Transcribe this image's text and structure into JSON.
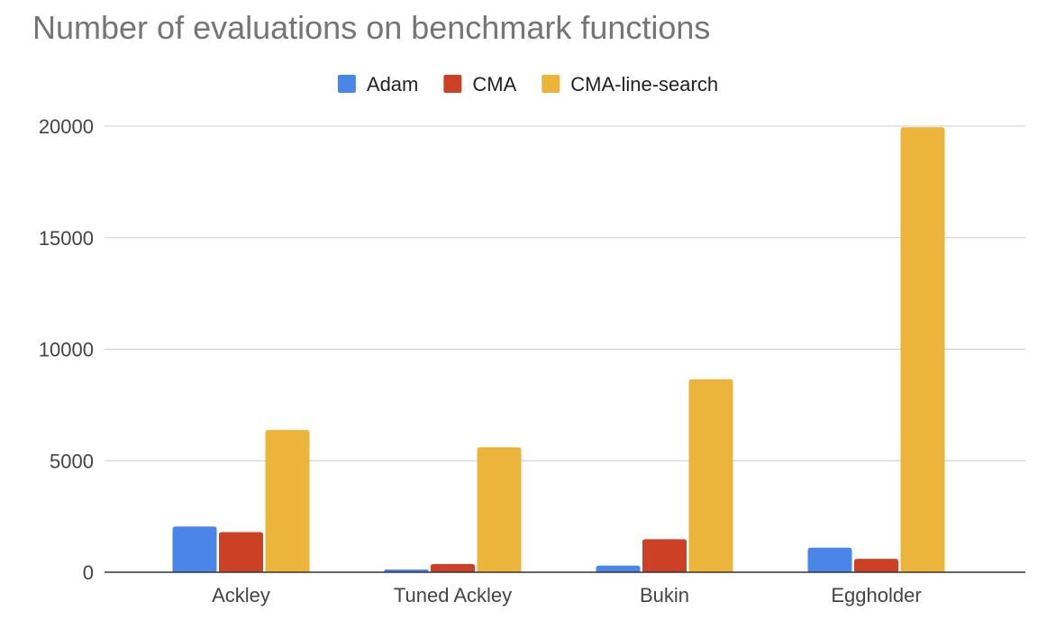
{
  "chart_data": {
    "type": "bar",
    "title": "Number of evaluations on benchmark functions",
    "xlabel": "",
    "ylabel": "",
    "categories": [
      "Ackley",
      "Tuned Ackley",
      "Bukin",
      "Eggholder"
    ],
    "series": [
      {
        "name": "Adam",
        "color": "#4a86e8",
        "values": [
          2050,
          120,
          300,
          1100
        ]
      },
      {
        "name": "CMA",
        "color": "#cc4125",
        "values": [
          1800,
          370,
          1480,
          600
        ]
      },
      {
        "name": "CMA-line-search",
        "color": "#ecb43a",
        "values": [
          6380,
          5600,
          8650,
          19950
        ]
      }
    ],
    "ylim": [
      0,
      20000
    ],
    "yticks": [
      0,
      5000,
      10000,
      15000,
      20000
    ],
    "grid": true,
    "legend_position": "top"
  }
}
